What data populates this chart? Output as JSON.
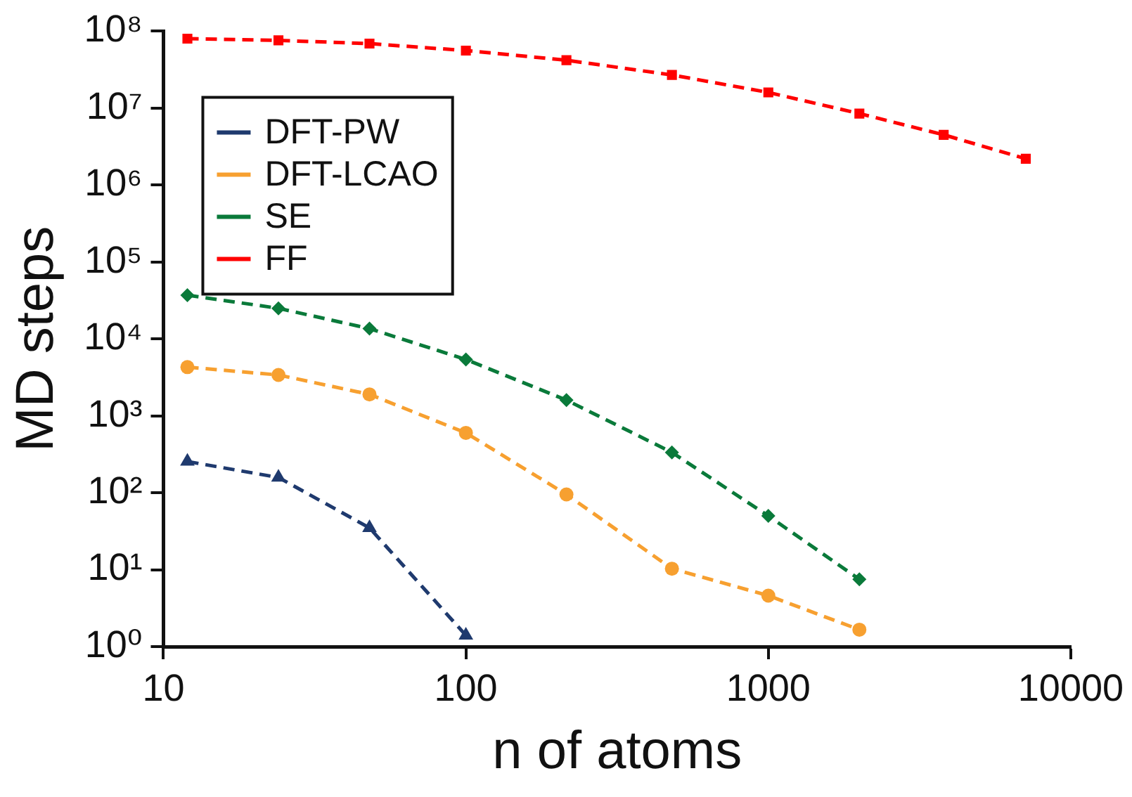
{
  "chart_data": {
    "type": "line",
    "xlabel": "n of atoms",
    "ylabel": "MD steps",
    "log": "xy",
    "grid": false,
    "legend": "top left",
    "line_style": "dashed",
    "xlim": [
      10,
      10000
    ],
    "xticks": [
      10,
      100,
      1000,
      {
        "value": 10000,
        "label": "10000"
      }
    ],
    "ylim": [
      1,
      100000000
    ],
    "yticks": [
      {
        "value": 1,
        "label": "10⁰"
      },
      {
        "value": 10,
        "label": "10¹"
      },
      {
        "value": 100,
        "label": "10²"
      },
      {
        "value": 1000,
        "label": "10³"
      },
      {
        "value": 10000,
        "label": "10⁴"
      },
      {
        "value": 100000,
        "label": "10⁵"
      },
      {
        "value": 1000000,
        "label": "10⁶"
      },
      {
        "value": 10000000,
        "label": "10⁷"
      },
      {
        "value": 100000000,
        "label": "10⁸"
      }
    ],
    "series": [
      {
        "name": "DFT-PW",
        "color": "#1f3a6e",
        "marker": "triangle",
        "x": [
          12,
          24,
          48,
          100
        ],
        "values": [
          255,
          158,
          35,
          1.4
        ]
      },
      {
        "name": "DFT-LCAO",
        "color": "#f7a030",
        "marker": "circle",
        "x": [
          12,
          24,
          48,
          100,
          215,
          480,
          1000,
          2000
        ],
        "values": [
          4300,
          3400,
          1900,
          600,
          95,
          10.3,
          4.6,
          1.66
        ]
      },
      {
        "name": "SE",
        "color": "#0a7a3a",
        "marker": "diamond",
        "x": [
          12,
          24,
          48,
          100,
          215,
          480,
          1000,
          2000
        ],
        "values": [
          37000,
          25000,
          13600,
          5400,
          1600,
          335,
          50,
          7.5
        ]
      },
      {
        "name": "FF",
        "color": "#ff0000",
        "marker": "square",
        "x": [
          12,
          24,
          48,
          100,
          215,
          480,
          1000,
          2000,
          3800,
          7100
        ],
        "values": [
          80000000,
          76000000,
          69000000,
          56000000,
          42000000,
          27000000,
          16000000,
          8500000,
          4500000,
          2200000
        ]
      }
    ]
  }
}
